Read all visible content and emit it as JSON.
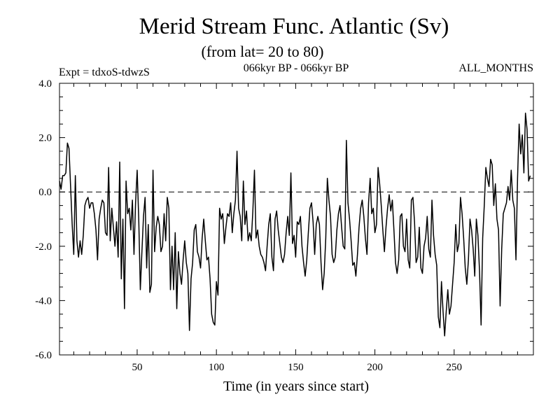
{
  "chart_data": {
    "type": "line",
    "title": "Merid Stream Func. Atlantic (Sv)",
    "subtitle": "(from lat= 20 to 80)",
    "left_label": "Expt = tdxoS-tdwzS",
    "center_label": "066kyr BP - 066kyr BP",
    "right_label": "ALL_MONTHS",
    "xlabel": "Time (in years since start)",
    "ylabel": "",
    "xlim": [
      1,
      300
    ],
    "ylim": [
      -6,
      4
    ],
    "x_ticks": [
      50,
      100,
      150,
      200,
      250
    ],
    "y_ticks": [
      4,
      2,
      0,
      -2,
      -4,
      -6
    ],
    "y_tick_labels": [
      "4.0",
      "2.0",
      "0.0",
      "-2.0",
      "-4.0",
      "-6.0"
    ],
    "reference_line": {
      "y": 0,
      "style": "dashed"
    },
    "grid": false,
    "line_color": "#000000",
    "series": [
      {
        "x_start": 1,
        "x_step": 1,
        "values": [
          0.4,
          0.1,
          0.6,
          0.6,
          0.7,
          1.8,
          1.6,
          0.2,
          -1.2,
          -2.3,
          0.6,
          -1.8,
          -2.4,
          -1.8,
          -2.3,
          -1.6,
          -0.5,
          -0.3,
          -0.2,
          -0.6,
          -0.4,
          -0.4,
          -0.8,
          -1.4,
          -2.5,
          -1.0,
          -0.6,
          -0.3,
          -0.4,
          -1.5,
          -1.6,
          0.9,
          -1.8,
          -0.6,
          -1.3,
          -2.0,
          -1.1,
          -2.4,
          1.1,
          -3.2,
          -1.0,
          -4.3,
          0.4,
          -0.8,
          -0.6,
          -1.4,
          -0.3,
          -2.3,
          -0.4,
          0.8,
          -1.0,
          -3.6,
          -2.2,
          -0.9,
          -0.2,
          -2.8,
          -1.2,
          -3.7,
          -3.4,
          0.8,
          -2.2,
          -1.3,
          -0.9,
          -1.2,
          -2.2,
          -2.0,
          -0.8,
          -1.8,
          -0.2,
          -0.6,
          -3.6,
          -2.0,
          -3.6,
          -1.5,
          -4.3,
          -2.2,
          -3.0,
          -3.4,
          -2.5,
          -1.8,
          -2.6,
          -3.0,
          -5.1,
          -3.2,
          -2.6,
          -1.4,
          -1.2,
          -2.2,
          -2.4,
          -2.8,
          -1.7,
          -1.0,
          -1.8,
          -2.5,
          -2.4,
          -3.2,
          -4.5,
          -4.8,
          -4.9,
          -3.3,
          -3.8,
          -0.6,
          -1.0,
          -0.8,
          -1.9,
          -1.3,
          -0.8,
          -0.9,
          -0.4,
          -1.5,
          -0.8,
          -0.3,
          1.5,
          -0.6,
          -0.9,
          -1.8,
          0.4,
          -1.2,
          -0.7,
          -1.8,
          -1.5,
          -1.8,
          -0.7,
          0.8,
          -1.7,
          -1.4,
          -2.0,
          -2.3,
          -2.4,
          -2.6,
          -2.9,
          -2.0,
          -1.2,
          -0.8,
          -2.4,
          -2.9,
          -1.0,
          -0.7,
          -1.4,
          -1.9,
          -2.4,
          -2.6,
          -2.3,
          -1.5,
          -0.9,
          -1.6,
          0.7,
          -1.9,
          -1.6,
          -2.4,
          -1.1,
          -1.2,
          -0.9,
          -2.0,
          -2.6,
          -3.1,
          -2.5,
          -1.5,
          -0.6,
          -0.4,
          -1.1,
          -2.3,
          -1.2,
          -0.9,
          -1.2,
          -2.6,
          -3.6,
          -3.0,
          -1.7,
          0.5,
          -0.3,
          -0.9,
          -2.3,
          -2.6,
          -2.4,
          -1.4,
          -0.8,
          -0.5,
          -1.3,
          -2.0,
          -2.1,
          1.9,
          -0.4,
          -1.0,
          -1.8,
          -2.7,
          -2.6,
          -3.1,
          -2.3,
          -1.3,
          -0.6,
          -0.3,
          -0.9,
          -1.7,
          -2.3,
          -0.4,
          0.5,
          -0.8,
          -0.6,
          -1.5,
          -1.2,
          0.9,
          0.3,
          -0.5,
          -1.4,
          -2.2,
          -1.3,
          -0.6,
          -0.1,
          -0.7,
          -0.3,
          -1.4,
          -2.6,
          -3.0,
          -2.5,
          -0.9,
          -0.8,
          -2.0,
          -2.2,
          -1.0,
          -2.5,
          -2.8,
          -0.3,
          -0.2,
          -1.1,
          -2.6,
          -2.4,
          -1.3,
          -2.8,
          -3.0,
          -2.0,
          -1.7,
          -0.9,
          -2.1,
          -2.4,
          -0.3,
          -1.6,
          -2.3,
          -2.7,
          -4.6,
          -5.0,
          -3.3,
          -4.4,
          -5.3,
          -4.4,
          -3.6,
          -4.5,
          -4.2,
          -3.4,
          -2.6,
          -1.2,
          -2.2,
          -1.9,
          -0.2,
          -0.8,
          -1.7,
          -2.8,
          -3.4,
          -2.5,
          -1.0,
          -1.4,
          -2.1,
          -3.1,
          -1.0,
          -1.6,
          -2.9,
          -4.9,
          -1.7,
          -0.5,
          0.9,
          0.5,
          0.2,
          1.2,
          1.0,
          -0.5,
          0.3,
          -1.0,
          -1.4,
          -4.2,
          -2.1,
          -0.8,
          -0.6,
          -0.4,
          0.2,
          -0.3,
          0.8,
          -0.3,
          -0.6,
          -2.5,
          0.5,
          2.5,
          1.4,
          2.1,
          0.7,
          2.9,
          2.3,
          0.4,
          0.6
        ]
      }
    ]
  }
}
